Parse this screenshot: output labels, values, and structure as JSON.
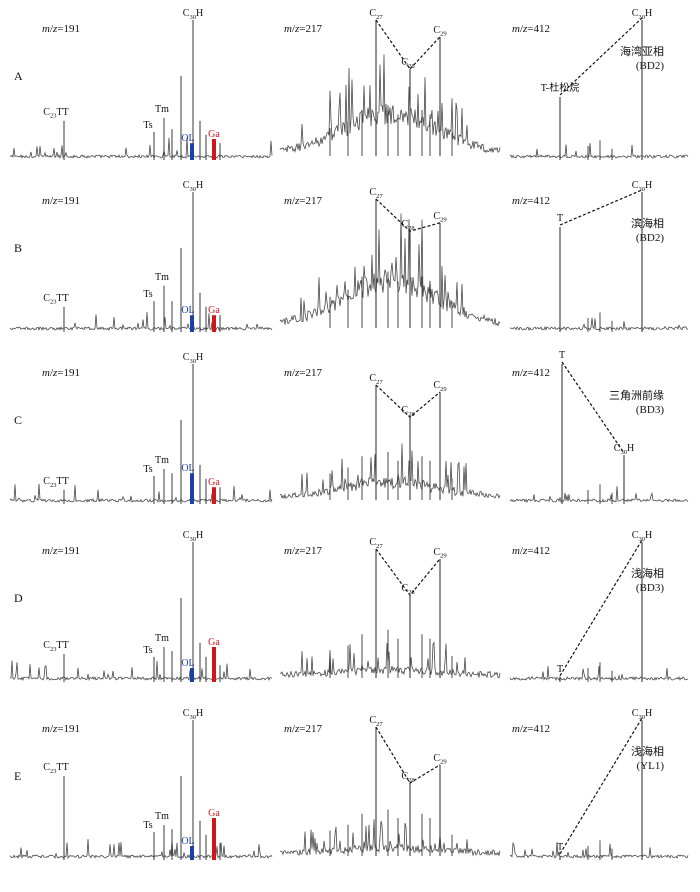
{
  "figure": {
    "colors": {
      "trace": "#4a4a4a",
      "dashed": "#111111",
      "OL": "#1f3fa8",
      "Ga": "#d0161b"
    },
    "panels": [
      {
        "letter": "A",
        "env_line1": "海湾亚相",
        "env_line2": "(BD2)",
        "m412_shape": "th",
        "m412_T_label": "T-杜松烷"
      },
      {
        "letter": "B",
        "env_line1": "滨海相",
        "env_line2": "(BD2)",
        "m412_shape": "th",
        "m412_T_label": "T"
      },
      {
        "letter": "C",
        "env_line1": "三角洲前缘",
        "env_line2": "(BD3)",
        "m412_shape": "tdom",
        "m412_T_label": "T"
      },
      {
        "letter": "D",
        "env_line1": "浅海相",
        "env_line2": "(BD3)",
        "m412_shape": "hdom",
        "m412_T_label": "T"
      },
      {
        "letter": "E",
        "env_line1": "浅海相",
        "env_line2": "(YL1)",
        "m412_shape": "hdom",
        "m412_T_label": "T"
      }
    ]
  },
  "chart_data": [
    {
      "type": "line",
      "panel": "m/z=191 (A–E)",
      "title": "m/z=191",
      "peak_labels": [
        "C23TT",
        "Ts",
        "Tm",
        "C30H",
        "OL",
        "Ga"
      ],
      "series": [
        {
          "name": "A",
          "peaks": [
            {
              "label": "C23TT",
              "rel": 0.28
            },
            {
              "label": "Ts",
              "rel": 0.2
            },
            {
              "label": "Tm",
              "rel": 0.3
            },
            {
              "label": "C30H",
              "rel": 1.0
            },
            {
              "label": "OL",
              "rel": 0.12
            },
            {
              "label": "Ga",
              "rel": 0.15
            }
          ]
        },
        {
          "name": "B",
          "peaks": [
            {
              "label": "C23TT",
              "rel": 0.18
            },
            {
              "label": "Ts",
              "rel": 0.22
            },
            {
              "label": "Tm",
              "rel": 0.33
            },
            {
              "label": "C30H",
              "rel": 1.0
            },
            {
              "label": "OL",
              "rel": 0.12
            },
            {
              "label": "Ga",
              "rel": 0.12
            }
          ]
        },
        {
          "name": "C",
          "peaks": [
            {
              "label": "C23TT",
              "rel": 0.1
            },
            {
              "label": "Ts",
              "rel": 0.2
            },
            {
              "label": "Tm",
              "rel": 0.25
            },
            {
              "label": "C30H",
              "rel": 1.0
            },
            {
              "label": "OL",
              "rel": 0.22
            },
            {
              "label": "Ga",
              "rel": 0.12
            }
          ]
        },
        {
          "name": "D",
          "peaks": [
            {
              "label": "C23TT",
              "rel": 0.2
            },
            {
              "label": "Ts",
              "rel": 0.18
            },
            {
              "label": "Tm",
              "rel": 0.25
            },
            {
              "label": "C30H",
              "rel": 1.0
            },
            {
              "label": "OL",
              "rel": 0.1
            },
            {
              "label": "Ga",
              "rel": 0.25
            }
          ]
        },
        {
          "name": "E",
          "peaks": [
            {
              "label": "C23TT",
              "rel": 0.6
            },
            {
              "label": "Ts",
              "rel": 0.2
            },
            {
              "label": "Tm",
              "rel": 0.25
            },
            {
              "label": "C30H",
              "rel": 1.0
            },
            {
              "label": "OL",
              "rel": 0.1
            },
            {
              "label": "Ga",
              "rel": 0.3
            }
          ]
        }
      ]
    },
    {
      "type": "line",
      "panel": "m/z=217 (A–E)",
      "title": "m/z=217",
      "peak_labels": [
        "C27",
        "C28",
        "C29"
      ],
      "series": [
        {
          "name": "A",
          "values": [
            {
              "label": "C27",
              "rel": 1.0
            },
            {
              "label": "C28",
              "rel": 0.65
            },
            {
              "label": "C29",
              "rel": 0.88
            }
          ],
          "hump": 0.4
        },
        {
          "name": "B",
          "values": [
            {
              "label": "C27",
              "rel": 0.95
            },
            {
              "label": "C28",
              "rel": 0.72
            },
            {
              "label": "C29",
              "rel": 0.78
            }
          ],
          "hump": 0.45
        },
        {
          "name": "C",
          "values": [
            {
              "label": "C27",
              "rel": 0.85
            },
            {
              "label": "C28",
              "rel": 0.62
            },
            {
              "label": "C29",
              "rel": 0.8
            }
          ],
          "hump": 0.15
        },
        {
          "name": "D",
          "values": [
            {
              "label": "C27",
              "rel": 0.95
            },
            {
              "label": "C28",
              "rel": 0.62
            },
            {
              "label": "C29",
              "rel": 0.88
            }
          ],
          "hump": 0.05
        },
        {
          "name": "E",
          "values": [
            {
              "label": "C27",
              "rel": 0.95
            },
            {
              "label": "C28",
              "rel": 0.55
            },
            {
              "label": "C29",
              "rel": 0.68
            }
          ],
          "hump": 0.05
        }
      ]
    },
    {
      "type": "line",
      "panel": "m/z=412 (A–E)",
      "title": "m/z=412",
      "peak_labels": [
        "T",
        "C30H"
      ],
      "series": [
        {
          "name": "A",
          "values": [
            {
              "label": "T",
              "rel": 0.45
            },
            {
              "label": "C30H",
              "rel": 1.0
            }
          ]
        },
        {
          "name": "B",
          "values": [
            {
              "label": "T",
              "rel": 0.75
            },
            {
              "label": "C30H",
              "rel": 1.0
            }
          ]
        },
        {
          "name": "C",
          "values": [
            {
              "label": "T",
              "rel": 1.0
            },
            {
              "label": "C30H",
              "rel": 0.35
            }
          ]
        },
        {
          "name": "D",
          "values": [
            {
              "label": "T",
              "rel": 0.03
            },
            {
              "label": "C30H",
              "rel": 1.0
            }
          ]
        },
        {
          "name": "E",
          "values": [
            {
              "label": "T",
              "rel": 0.03
            },
            {
              "label": "C30H",
              "rel": 1.0
            }
          ]
        }
      ]
    }
  ]
}
